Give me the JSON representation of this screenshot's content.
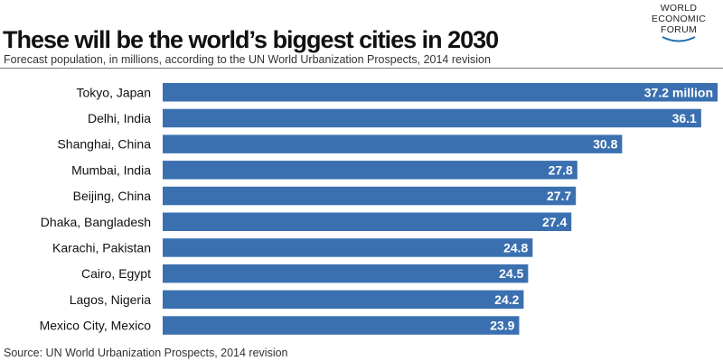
{
  "header": {
    "title": "These will be the world’s biggest cities in 2030",
    "subtitle": "Forecast population, in millions, according to the UN World Urbanization Prospects, 2014 revision"
  },
  "logo": {
    "lines": [
      "WORLD",
      "ECONOMIC",
      "FORUM"
    ]
  },
  "footer": {
    "source": "Source: UN World Urbanization Prospects, 2014 revision"
  },
  "colors": {
    "bar": "#3a70b0",
    "text": "#111111"
  },
  "chart_data": {
    "type": "bar",
    "orientation": "horizontal",
    "categories": [
      "Tokyo, Japan",
      "Delhi, India",
      "Shanghai, China",
      "Mumbai, India",
      "Beijing, China",
      "Dhaka, Bangladesh",
      "Karachi, Pakistan",
      "Cairo, Egypt",
      "Lagos, Nigeria",
      "Mexico City, Mexico"
    ],
    "values": [
      37.2,
      36.1,
      30.8,
      27.8,
      27.7,
      27.4,
      24.8,
      24.5,
      24.2,
      23.9
    ],
    "data_labels": [
      "37.2 million",
      "36.1",
      "30.8",
      "27.8",
      "27.7",
      "27.4",
      "24.8",
      "24.5",
      "24.2",
      "23.9"
    ],
    "unit": "millions",
    "grid": false,
    "legend": "none"
  }
}
